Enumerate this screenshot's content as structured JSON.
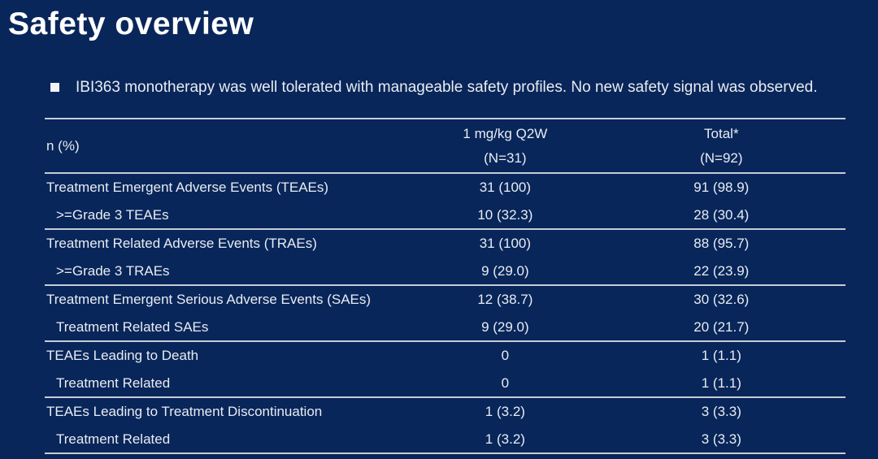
{
  "slide": {
    "title": "Safety overview",
    "bullet_text": "IBI363 monotherapy was well tolerated with manageable safety profiles. No new safety signal was observed."
  },
  "table": {
    "corner_label": "n (%)",
    "columns": [
      {
        "label": "1 mg/kg Q2W",
        "n": "(N=31)"
      },
      {
        "label": "Total*",
        "n": "(N=92)"
      }
    ],
    "rows": [
      {
        "label": "Treatment Emergent Adverse Events (TEAEs)",
        "values": [
          "31 (100)",
          "91 (98.9)"
        ]
      },
      {
        "label": ">=Grade 3 TEAEs",
        "values": [
          "10 (32.3)",
          "28 (30.4)"
        ]
      },
      {
        "label": "Treatment Related Adverse Events (TRAEs)",
        "values": [
          "31 (100)",
          "88 (95.7)"
        ]
      },
      {
        "label": ">=Grade 3 TRAEs",
        "values": [
          "9 (29.0)",
          "22 (23.9)"
        ]
      },
      {
        "label": "Treatment Emergent Serious Adverse Events (SAEs)",
        "values": [
          "12 (38.7)",
          "30 (32.6)"
        ]
      },
      {
        "label": "Treatment Related SAEs",
        "values": [
          "9 (29.0)",
          "20 (21.7)"
        ]
      },
      {
        "label": "TEAEs Leading to Death",
        "values": [
          "0",
          "1 (1.1)"
        ]
      },
      {
        "label": "Treatment Related",
        "values": [
          "0",
          "1 (1.1)"
        ]
      },
      {
        "label": "TEAEs Leading to Treatment Discontinuation",
        "values": [
          "1 (3.2)",
          "3 (3.3)"
        ]
      },
      {
        "label": "Treatment Related",
        "values": [
          "1 (3.2)",
          "3 (3.3)"
        ]
      }
    ]
  },
  "colors": {
    "background": "#08265a",
    "text": "#e9ecf1",
    "rule": "#c6ccd6"
  }
}
